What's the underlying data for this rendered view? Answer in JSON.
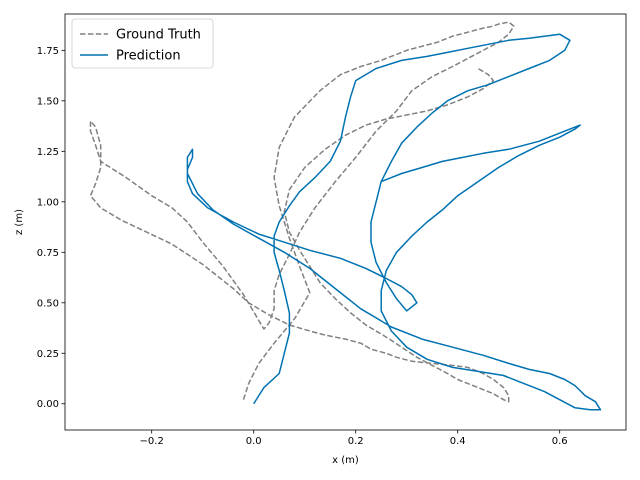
{
  "chart_data": {
    "type": "line",
    "xlabel": "x (m)",
    "ylabel": "z (m)",
    "xlim": [
      -0.37,
      0.73
    ],
    "ylim": [
      -0.13,
      1.93
    ],
    "xticks": [
      -0.2,
      0.0,
      0.2,
      0.4,
      0.6
    ],
    "xtick_labels": [
      "−0.2",
      "0.0",
      "0.2",
      "0.4",
      "0.6"
    ],
    "yticks": [
      0.0,
      0.25,
      0.5,
      0.75,
      1.0,
      1.25,
      1.5,
      1.75
    ],
    "ytick_labels": [
      "0.00",
      "0.25",
      "0.50",
      "0.75",
      "1.00",
      "1.25",
      "1.50",
      "1.75"
    ],
    "grid": false,
    "legend_position": "top-left",
    "series": [
      {
        "name": "Ground Truth",
        "color": "#808080",
        "dash": true,
        "x": [
          -0.02,
          -0.01,
          0.01,
          0.04,
          0.08,
          0.11,
          0.09,
          0.07,
          0.05,
          0.04,
          0.05,
          0.08,
          0.13,
          0.17,
          0.21,
          0.25,
          0.28,
          0.3,
          0.33,
          0.36,
          0.39,
          0.42,
          0.45,
          0.47,
          0.48,
          0.5,
          0.51,
          0.5,
          0.48,
          0.45,
          0.42,
          0.39,
          0.35,
          0.31,
          0.28,
          0.24,
          0.2,
          0.16,
          0.12,
          0.09,
          0.07,
          0.05,
          0.04,
          0.04,
          0.03,
          0.02,
          -0.02,
          -0.06,
          -0.1,
          -0.13,
          -0.16,
          -0.2,
          -0.25,
          -0.3,
          -0.31,
          -0.32,
          -0.32,
          -0.31,
          -0.3,
          -0.3,
          -0.31,
          -0.32,
          -0.3,
          -0.26,
          -0.21,
          -0.16,
          -0.13,
          -0.1,
          -0.07,
          -0.04,
          -0.01,
          0.03,
          0.07,
          0.11,
          0.14,
          0.18,
          0.21,
          0.23,
          0.26,
          0.28,
          0.31,
          0.35,
          0.39,
          0.42,
          0.45,
          0.47,
          0.49,
          0.5,
          0.5,
          0.49,
          0.47,
          0.44,
          0.42,
          0.4,
          0.38,
          0.35,
          0.32,
          0.29,
          0.26,
          0.22,
          0.19,
          0.16,
          0.13,
          0.11,
          0.09,
          0.07,
          0.06,
          0.07,
          0.1,
          0.14,
          0.18,
          0.22,
          0.26,
          0.3,
          0.34,
          0.38,
          0.42,
          0.45,
          0.47,
          0.46,
          0.44
        ],
        "y": [
          0.02,
          0.1,
          0.2,
          0.3,
          0.42,
          0.55,
          0.68,
          0.82,
          0.98,
          1.12,
          1.27,
          1.42,
          1.55,
          1.63,
          1.67,
          1.7,
          1.73,
          1.75,
          1.77,
          1.79,
          1.82,
          1.84,
          1.86,
          1.87,
          1.88,
          1.89,
          1.87,
          1.83,
          1.79,
          1.75,
          1.71,
          1.67,
          1.62,
          1.55,
          1.45,
          1.35,
          1.22,
          1.1,
          0.97,
          0.85,
          0.74,
          0.64,
          0.56,
          0.47,
          0.4,
          0.37,
          0.54,
          0.68,
          0.8,
          0.9,
          0.97,
          1.03,
          1.12,
          1.2,
          1.28,
          1.35,
          1.4,
          1.37,
          1.28,
          1.17,
          1.09,
          1.03,
          0.97,
          0.91,
          0.85,
          0.79,
          0.74,
          0.69,
          0.63,
          0.57,
          0.5,
          0.44,
          0.39,
          0.36,
          0.34,
          0.32,
          0.3,
          0.27,
          0.25,
          0.23,
          0.21,
          0.2,
          0.19,
          0.18,
          0.15,
          0.12,
          0.08,
          0.04,
          0.01,
          0.02,
          0.05,
          0.08,
          0.1,
          0.12,
          0.15,
          0.19,
          0.23,
          0.28,
          0.33,
          0.39,
          0.45,
          0.52,
          0.6,
          0.68,
          0.76,
          0.85,
          0.95,
          1.06,
          1.17,
          1.26,
          1.33,
          1.38,
          1.41,
          1.43,
          1.45,
          1.48,
          1.52,
          1.56,
          1.6,
          1.63,
          1.66
        ]
      },
      {
        "name": "Prediction",
        "color": "#0072b2",
        "dash": false,
        "x": [
          0.0,
          0.02,
          0.05,
          0.06,
          0.07,
          0.07,
          0.06,
          0.05,
          0.04,
          0.04,
          0.05,
          0.07,
          0.09,
          0.12,
          0.15,
          0.17,
          0.18,
          0.19,
          0.2,
          0.24,
          0.29,
          0.34,
          0.38,
          0.42,
          0.46,
          0.5,
          0.54,
          0.57,
          0.6,
          0.62,
          0.61,
          0.58,
          0.54,
          0.5,
          0.46,
          0.42,
          0.38,
          0.35,
          0.32,
          0.29,
          0.27,
          0.25,
          0.24,
          0.23,
          0.23,
          0.24,
          0.26,
          0.28,
          0.3,
          0.32,
          0.31,
          0.29,
          0.26,
          0.22,
          0.17,
          0.11,
          0.06,
          0.01,
          -0.04,
          -0.09,
          -0.12,
          -0.13,
          -0.13,
          -0.12,
          -0.12,
          -0.13,
          -0.13,
          -0.11,
          -0.08,
          -0.04,
          0.01,
          0.06,
          0.11,
          0.16,
          0.21,
          0.27,
          0.33,
          0.39,
          0.45,
          0.5,
          0.54,
          0.58,
          0.61,
          0.63,
          0.65,
          0.67,
          0.68,
          0.66,
          0.63,
          0.6,
          0.57,
          0.53,
          0.49,
          0.44,
          0.39,
          0.34,
          0.3,
          0.27,
          0.25,
          0.25,
          0.26,
          0.28,
          0.31,
          0.34,
          0.37,
          0.4,
          0.44,
          0.48,
          0.52,
          0.56,
          0.6,
          0.63,
          0.64,
          0.61,
          0.56,
          0.5,
          0.45,
          0.41,
          0.37,
          0.33,
          0.29,
          0.25
        ],
        "y": [
          0.0,
          0.08,
          0.15,
          0.25,
          0.35,
          0.45,
          0.56,
          0.66,
          0.75,
          0.83,
          0.9,
          0.98,
          1.05,
          1.12,
          1.2,
          1.3,
          1.42,
          1.52,
          1.6,
          1.66,
          1.7,
          1.72,
          1.74,
          1.76,
          1.78,
          1.8,
          1.81,
          1.82,
          1.83,
          1.8,
          1.75,
          1.7,
          1.66,
          1.62,
          1.58,
          1.55,
          1.5,
          1.44,
          1.37,
          1.29,
          1.2,
          1.1,
          1.0,
          0.9,
          0.8,
          0.7,
          0.6,
          0.52,
          0.46,
          0.5,
          0.54,
          0.58,
          0.62,
          0.67,
          0.72,
          0.76,
          0.8,
          0.84,
          0.9,
          0.97,
          1.04,
          1.1,
          1.16,
          1.22,
          1.26,
          1.22,
          1.14,
          1.04,
          0.96,
          0.89,
          0.82,
          0.75,
          0.67,
          0.57,
          0.47,
          0.38,
          0.32,
          0.28,
          0.24,
          0.2,
          0.17,
          0.15,
          0.12,
          0.09,
          0.04,
          0.01,
          -0.03,
          -0.03,
          -0.02,
          0.02,
          0.06,
          0.1,
          0.14,
          0.16,
          0.18,
          0.22,
          0.28,
          0.36,
          0.46,
          0.56,
          0.66,
          0.75,
          0.83,
          0.9,
          0.96,
          1.03,
          1.1,
          1.17,
          1.23,
          1.28,
          1.32,
          1.36,
          1.38,
          1.35,
          1.3,
          1.26,
          1.24,
          1.22,
          1.2,
          1.17,
          1.14,
          1.1
        ]
      }
    ]
  }
}
